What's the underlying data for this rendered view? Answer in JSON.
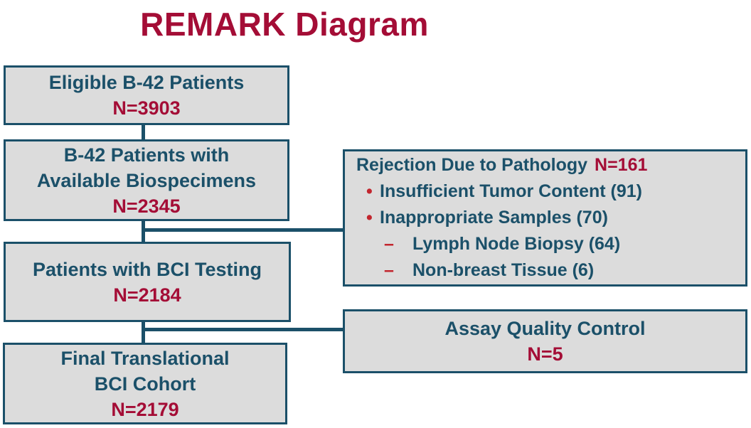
{
  "page": {
    "title": "REMARK Diagram"
  },
  "colors": {
    "teal": "#1B5069",
    "crimson": "#A40D36",
    "bullet_red": "#C2262E",
    "box_fill": "#DCDCDC",
    "background": "#FFFFFF"
  },
  "flow_boxes": [
    {
      "id": "eligible-patients",
      "lines": [
        "Eligible B-42 Patients"
      ],
      "n_label": "N=3903"
    },
    {
      "id": "available-biospecimens",
      "lines": [
        "B-42 Patients with",
        "Available Biospecimens"
      ],
      "n_label": "N=2345"
    },
    {
      "id": "bci-testing",
      "lines": [
        "Patients with BCI Testing"
      ],
      "n_label": "N=2184"
    },
    {
      "id": "final-cohort",
      "lines": [
        "Final Translational",
        "BCI Cohort"
      ],
      "n_label": "N=2179"
    }
  ],
  "side_boxes": {
    "rejection": {
      "title": "Rejection Due to Pathology",
      "n_label": "N=161",
      "bullets": [
        {
          "level": 1,
          "marker": "•",
          "text": "Insufficient Tumor Content (91)"
        },
        {
          "level": 1,
          "marker": "•",
          "text": "Inappropriate Samples (70)"
        },
        {
          "level": 2,
          "marker": "–",
          "text": "Lymph Node Biopsy (64)"
        },
        {
          "level": 2,
          "marker": "–",
          "text": "Non-breast Tissue (6)"
        }
      ]
    },
    "assay": {
      "title": "Assay Quality Control",
      "n_label": "N=5"
    }
  }
}
